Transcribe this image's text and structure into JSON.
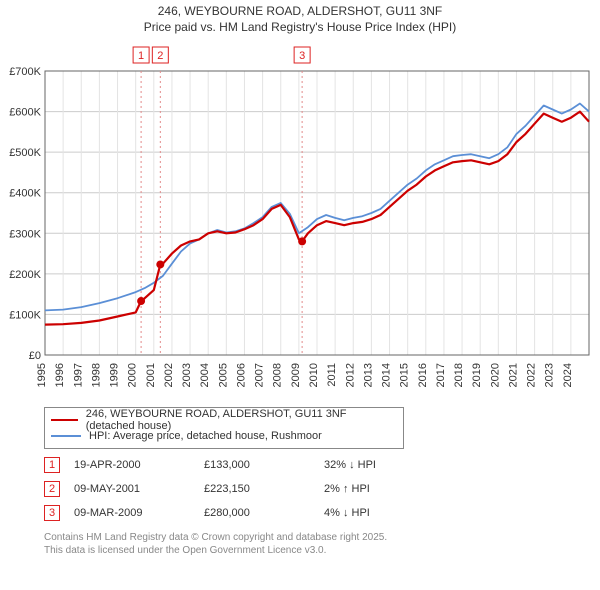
{
  "title_line1": "246, WEYBOURNE ROAD, ALDERSHOT, GU11 3NF",
  "title_line2": "Price paid vs. HM Land Registry's House Price Index (HPI)",
  "chart": {
    "type": "line",
    "background_color": "#ffffff",
    "plot_border_color": "#666666",
    "grid_color_major": "#cccccc",
    "grid_color_minor": "#e4e4e4",
    "x_years": [
      1995,
      1996,
      1997,
      1998,
      1999,
      2000,
      2001,
      2002,
      2003,
      2004,
      2005,
      2006,
      2007,
      2008,
      2009,
      2010,
      2011,
      2012,
      2013,
      2014,
      2015,
      2016,
      2017,
      2018,
      2019,
      2020,
      2021,
      2022,
      2023,
      2024
    ],
    "y_ticks": [
      0,
      100000,
      200000,
      300000,
      400000,
      500000,
      600000,
      700000
    ],
    "y_tick_labels": [
      "£0",
      "£100K",
      "£200K",
      "£300K",
      "£400K",
      "£500K",
      "£600K",
      "£700K"
    ],
    "ylim": [
      0,
      700000
    ],
    "xlim": [
      1995,
      2025
    ],
    "label_fontsize": 11,
    "series": [
      {
        "name": "price_paid",
        "label": "246, WEYBOURNE ROAD, ALDERSHOT, GU11 3NF (detached house)",
        "color": "#cc0000",
        "line_width": 2.2,
        "data": [
          [
            1995.0,
            75000
          ],
          [
            1996.0,
            76000
          ],
          [
            1997.0,
            79000
          ],
          [
            1998.0,
            85000
          ],
          [
            1999.0,
            95000
          ],
          [
            2000.0,
            105000
          ],
          [
            2000.3,
            133000
          ],
          [
            2000.5,
            140000
          ],
          [
            2001.0,
            160000
          ],
          [
            2001.36,
            223150
          ],
          [
            2001.5,
            225000
          ],
          [
            2002.0,
            250000
          ],
          [
            2002.5,
            270000
          ],
          [
            2003.0,
            280000
          ],
          [
            2003.5,
            285000
          ],
          [
            2004.0,
            300000
          ],
          [
            2004.5,
            305000
          ],
          [
            2005.0,
            300000
          ],
          [
            2005.5,
            302000
          ],
          [
            2006.0,
            310000
          ],
          [
            2006.5,
            320000
          ],
          [
            2007.0,
            335000
          ],
          [
            2007.5,
            360000
          ],
          [
            2008.0,
            370000
          ],
          [
            2008.5,
            340000
          ],
          [
            2009.0,
            285000
          ],
          [
            2009.18,
            280000
          ],
          [
            2009.5,
            300000
          ],
          [
            2010.0,
            320000
          ],
          [
            2010.5,
            330000
          ],
          [
            2011.0,
            325000
          ],
          [
            2011.5,
            320000
          ],
          [
            2012.0,
            325000
          ],
          [
            2012.5,
            328000
          ],
          [
            2013.0,
            335000
          ],
          [
            2013.5,
            345000
          ],
          [
            2014.0,
            365000
          ],
          [
            2014.5,
            385000
          ],
          [
            2015.0,
            405000
          ],
          [
            2015.5,
            420000
          ],
          [
            2016.0,
            440000
          ],
          [
            2016.5,
            455000
          ],
          [
            2017.0,
            465000
          ],
          [
            2017.5,
            475000
          ],
          [
            2018.0,
            478000
          ],
          [
            2018.5,
            480000
          ],
          [
            2019.0,
            475000
          ],
          [
            2019.5,
            470000
          ],
          [
            2020.0,
            478000
          ],
          [
            2020.5,
            495000
          ],
          [
            2021.0,
            525000
          ],
          [
            2021.5,
            545000
          ],
          [
            2022.0,
            570000
          ],
          [
            2022.5,
            595000
          ],
          [
            2023.0,
            585000
          ],
          [
            2023.5,
            575000
          ],
          [
            2024.0,
            585000
          ],
          [
            2024.5,
            600000
          ],
          [
            2025.0,
            575000
          ]
        ]
      },
      {
        "name": "hpi",
        "label": "HPI: Average price, detached house, Rushmoor",
        "color": "#5b8fd6",
        "line_width": 1.8,
        "data": [
          [
            1995.0,
            110000
          ],
          [
            1996.0,
            112000
          ],
          [
            1997.0,
            118000
          ],
          [
            1998.0,
            128000
          ],
          [
            1999.0,
            140000
          ],
          [
            2000.0,
            155000
          ],
          [
            2000.5,
            165000
          ],
          [
            2001.0,
            178000
          ],
          [
            2001.5,
            195000
          ],
          [
            2002.0,
            225000
          ],
          [
            2002.5,
            255000
          ],
          [
            2003.0,
            275000
          ],
          [
            2003.5,
            285000
          ],
          [
            2004.0,
            300000
          ],
          [
            2004.5,
            308000
          ],
          [
            2005.0,
            302000
          ],
          [
            2005.5,
            305000
          ],
          [
            2006.0,
            312000
          ],
          [
            2006.5,
            325000
          ],
          [
            2007.0,
            340000
          ],
          [
            2007.5,
            365000
          ],
          [
            2008.0,
            375000
          ],
          [
            2008.5,
            348000
          ],
          [
            2009.0,
            300000
          ],
          [
            2009.5,
            315000
          ],
          [
            2010.0,
            335000
          ],
          [
            2010.5,
            345000
          ],
          [
            2011.0,
            338000
          ],
          [
            2011.5,
            332000
          ],
          [
            2012.0,
            338000
          ],
          [
            2012.5,
            342000
          ],
          [
            2013.0,
            350000
          ],
          [
            2013.5,
            360000
          ],
          [
            2014.0,
            380000
          ],
          [
            2014.5,
            400000
          ],
          [
            2015.0,
            420000
          ],
          [
            2015.5,
            435000
          ],
          [
            2016.0,
            455000
          ],
          [
            2016.5,
            470000
          ],
          [
            2017.0,
            480000
          ],
          [
            2017.5,
            490000
          ],
          [
            2018.0,
            493000
          ],
          [
            2018.5,
            495000
          ],
          [
            2019.0,
            490000
          ],
          [
            2019.5,
            485000
          ],
          [
            2020.0,
            495000
          ],
          [
            2020.5,
            512000
          ],
          [
            2021.0,
            545000
          ],
          [
            2021.5,
            565000
          ],
          [
            2022.0,
            590000
          ],
          [
            2022.5,
            615000
          ],
          [
            2023.0,
            605000
          ],
          [
            2023.5,
            595000
          ],
          [
            2024.0,
            605000
          ],
          [
            2024.5,
            620000
          ],
          [
            2025.0,
            600000
          ]
        ]
      }
    ],
    "sale_markers": [
      {
        "id": "1",
        "year": 2000.3,
        "value": 133000
      },
      {
        "id": "2",
        "year": 2001.36,
        "value": 223150
      },
      {
        "id": "3",
        "year": 2009.18,
        "value": 280000
      }
    ],
    "marker_line_color": "#e28a8a",
    "marker_box_color": "#cc0000",
    "sale_point_color": "#cc0000",
    "sale_point_radius": 4
  },
  "legend": {
    "series1_label": "246, WEYBOURNE ROAD, ALDERSHOT, GU11 3NF (detached house)",
    "series2_label": "HPI: Average price, detached house, Rushmoor"
  },
  "events": [
    {
      "id": "1",
      "date": "19-APR-2000",
      "price": "£133,000",
      "delta": "32% ↓ HPI"
    },
    {
      "id": "2",
      "date": "09-MAY-2001",
      "price": "£223,150",
      "delta": "2% ↑ HPI"
    },
    {
      "id": "3",
      "date": "09-MAR-2009",
      "price": "£280,000",
      "delta": "4% ↓ HPI"
    }
  ],
  "footer_line1": "Contains HM Land Registry data © Crown copyright and database right 2025.",
  "footer_line2": "This data is licensed under the Open Government Licence v3.0."
}
